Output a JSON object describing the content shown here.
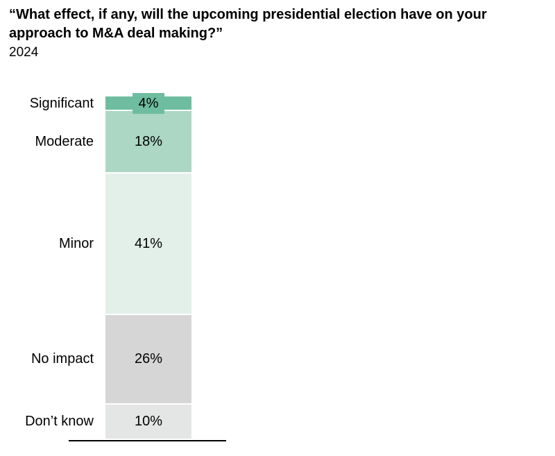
{
  "header": {
    "title": "“What effect, if any, will the upcoming presidential election have on your approach to M&A deal making?”",
    "year": "2024"
  },
  "chart_data": {
    "type": "bar",
    "variant": "single-stacked-vertical-bar",
    "title": "“What effect, if any, will the upcoming presidential election have on your approach to M&A deal making?”",
    "subtitle": "2024",
    "categories": [
      "Significant",
      "Moderate",
      "Minor",
      "No impact",
      "Don’t know"
    ],
    "values": [
      4,
      18,
      41,
      26,
      10
    ],
    "unit": "%",
    "segments": [
      {
        "label": "Significant",
        "value": 4,
        "display": "4%",
        "color": "#6ebda0",
        "boxed_label": true
      },
      {
        "label": "Moderate",
        "value": 18,
        "display": "18%",
        "color": "#abd7c4",
        "boxed_label": false
      },
      {
        "label": "Minor",
        "value": 41,
        "display": "41%",
        "color": "#e3f0e9",
        "boxed_label": false
      },
      {
        "label": "No impact",
        "value": 26,
        "display": "26%",
        "color": "#d6d6d7",
        "boxed_label": false
      },
      {
        "label": "Don’t know",
        "value": 10,
        "display": "10%",
        "color": "#e4e5e5",
        "boxed_label": false
      }
    ],
    "separator_color": "#ffffff",
    "axis_color": "#000000",
    "label_text_color": "#000000",
    "legend": "none",
    "grid": "off"
  }
}
